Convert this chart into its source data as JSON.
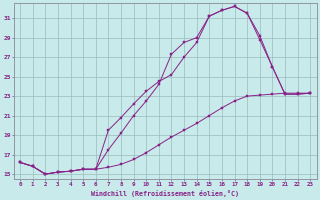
{
  "xlabel": "Windchill (Refroidissement éolien,°C)",
  "bg_color": "#c8eaea",
  "line_color": "#882288",
  "grid_color": "#99bbbb",
  "xlim": [
    -0.5,
    23.5
  ],
  "ylim": [
    14.5,
    32.5
  ],
  "xticks": [
    0,
    1,
    2,
    3,
    4,
    5,
    6,
    7,
    8,
    9,
    10,
    11,
    12,
    13,
    14,
    15,
    16,
    17,
    18,
    19,
    20,
    21,
    22,
    23
  ],
  "yticks": [
    15,
    17,
    19,
    21,
    23,
    25,
    27,
    29,
    31
  ],
  "line1_x": [
    0,
    1,
    2,
    3,
    4,
    5,
    6,
    7,
    8,
    9,
    10,
    11,
    12,
    13,
    14,
    15,
    16,
    17,
    18,
    19,
    20,
    21,
    22,
    23
  ],
  "line1_y": [
    16.2,
    15.8,
    15.0,
    15.2,
    15.3,
    15.5,
    15.5,
    15.7,
    16.0,
    16.5,
    17.2,
    18.0,
    18.8,
    19.5,
    20.2,
    21.0,
    21.8,
    22.5,
    23.0,
    23.1,
    23.2,
    23.3,
    23.3,
    23.3
  ],
  "line2_x": [
    0,
    1,
    2,
    3,
    4,
    5,
    6,
    7,
    8,
    9,
    10,
    11,
    12,
    13,
    14,
    15,
    16,
    17,
    18,
    19,
    20,
    21,
    22,
    23
  ],
  "line2_y": [
    16.2,
    15.8,
    15.0,
    15.2,
    15.3,
    15.5,
    15.5,
    19.5,
    20.8,
    22.2,
    23.5,
    24.5,
    25.2,
    27.0,
    28.5,
    31.2,
    31.8,
    32.2,
    31.5,
    29.2,
    26.0,
    23.2,
    23.2,
    23.3
  ],
  "line3_x": [
    0,
    1,
    2,
    3,
    4,
    5,
    6,
    7,
    8,
    9,
    10,
    11,
    12,
    13,
    14,
    15,
    16,
    17,
    18,
    19,
    20,
    21,
    22,
    23
  ],
  "line3_y": [
    16.2,
    15.8,
    15.0,
    15.2,
    15.3,
    15.5,
    15.5,
    17.5,
    19.2,
    21.0,
    22.5,
    24.2,
    27.3,
    28.5,
    29.0,
    31.2,
    31.8,
    32.2,
    31.5,
    28.8,
    26.0,
    23.2,
    23.2,
    23.3
  ]
}
